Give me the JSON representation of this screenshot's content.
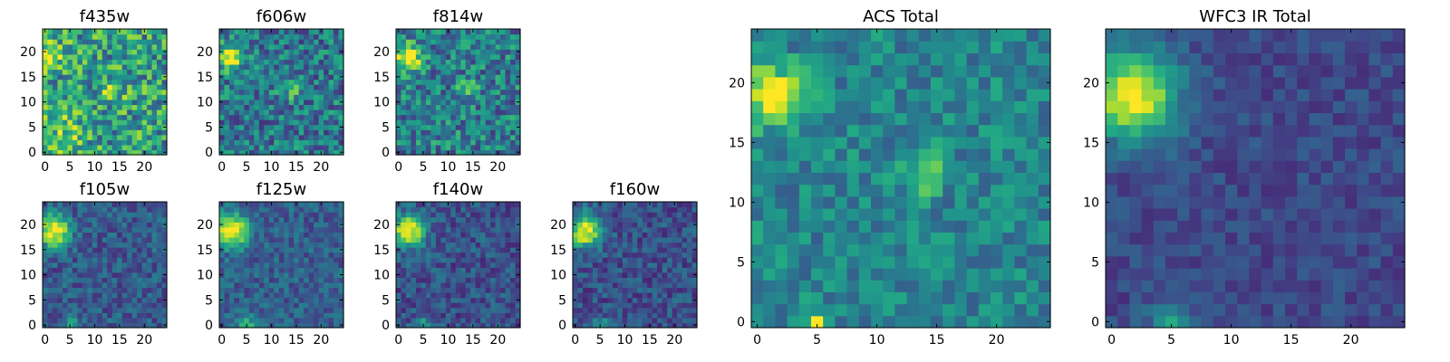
{
  "chart_data": [
    {
      "type": "heatmap",
      "title": "f435w",
      "xlim": [
        0,
        25
      ],
      "ylim": [
        0,
        25
      ],
      "xticks": [
        "0",
        "5",
        "10",
        "15",
        "20"
      ],
      "yticks": [
        "0",
        "5",
        "10",
        "15",
        "20"
      ],
      "colormap": "viridis",
      "noise": 0.62,
      "features": [
        {
          "x": 0.5,
          "y": 19,
          "amp": 0.55,
          "sigma": 2.0
        },
        {
          "x": 13.5,
          "y": 12.5,
          "amp": 0.35,
          "sigma": 1.5
        },
        {
          "x": 4,
          "y": 4,
          "amp": 0.2,
          "sigma": 3
        }
      ],
      "base": 0.55
    },
    {
      "type": "heatmap",
      "title": "f606w",
      "xlim": [
        0,
        25
      ],
      "ylim": [
        0,
        25
      ],
      "xticks": [
        "0",
        "5",
        "10",
        "15",
        "20"
      ],
      "yticks": [
        "0",
        "5",
        "10",
        "15",
        "20"
      ],
      "colormap": "viridis",
      "noise": 0.5,
      "features": [
        {
          "x": 1.5,
          "y": 19,
          "amp": 0.65,
          "sigma": 1.8
        },
        {
          "x": 14,
          "y": 12.5,
          "amp": 0.25,
          "sigma": 1.5
        }
      ],
      "base": 0.4
    },
    {
      "type": "heatmap",
      "title": "f814w",
      "xlim": [
        0,
        25
      ],
      "ylim": [
        0,
        25
      ],
      "xticks": [
        "0",
        "5",
        "10",
        "15",
        "20"
      ],
      "yticks": [
        "0",
        "5",
        "10",
        "15",
        "20"
      ],
      "colormap": "viridis",
      "noise": 0.5,
      "features": [
        {
          "x": 2,
          "y": 19,
          "amp": 0.7,
          "sigma": 1.8
        },
        {
          "x": 14,
          "y": 12.5,
          "amp": 0.2,
          "sigma": 1.5
        }
      ],
      "base": 0.42
    },
    {
      "type": "heatmap",
      "title": "f105w",
      "xlim": [
        0,
        25
      ],
      "ylim": [
        0,
        25
      ],
      "xticks": [
        "0",
        "5",
        "10",
        "15",
        "20"
      ],
      "yticks": [
        "0",
        "5",
        "10",
        "15",
        "20"
      ],
      "colormap": "viridis",
      "noise": 0.3,
      "features": [
        {
          "x": 1.8,
          "y": 18.8,
          "amp": 0.75,
          "sigma": 2.2
        },
        {
          "x": 5,
          "y": 0,
          "amp": 0.3,
          "sigma": 1.2
        }
      ],
      "base": 0.28
    },
    {
      "type": "heatmap",
      "title": "f125w",
      "xlim": [
        0,
        25
      ],
      "ylim": [
        0,
        25
      ],
      "xticks": [
        "0",
        "5",
        "10",
        "15",
        "20"
      ],
      "yticks": [
        "0",
        "5",
        "10",
        "15",
        "20"
      ],
      "colormap": "viridis",
      "noise": 0.28,
      "features": [
        {
          "x": 2,
          "y": 18.8,
          "amp": 0.75,
          "sigma": 2.3
        },
        {
          "x": 5,
          "y": 0,
          "amp": 0.45,
          "sigma": 1.2
        }
      ],
      "base": 0.3
    },
    {
      "type": "heatmap",
      "title": "f140w",
      "xlim": [
        0,
        25
      ],
      "ylim": [
        0,
        25
      ],
      "xticks": [
        "0",
        "5",
        "10",
        "15",
        "20"
      ],
      "yticks": [
        "0",
        "5",
        "10",
        "15",
        "20"
      ],
      "colormap": "viridis",
      "noise": 0.3,
      "features": [
        {
          "x": 2,
          "y": 18.8,
          "amp": 0.75,
          "sigma": 2.3
        },
        {
          "x": 5,
          "y": 0,
          "amp": 0.35,
          "sigma": 1.2
        }
      ],
      "base": 0.25
    },
    {
      "type": "heatmap",
      "title": "f160w",
      "xlim": [
        0,
        25
      ],
      "ylim": [
        0,
        25
      ],
      "xticks": [
        "0",
        "5",
        "10",
        "15",
        "20"
      ],
      "yticks": [
        "0",
        "5",
        "10",
        "15",
        "20"
      ],
      "colormap": "viridis",
      "noise": 0.3,
      "features": [
        {
          "x": 2,
          "y": 18.8,
          "amp": 0.75,
          "sigma": 2.3
        },
        {
          "x": 5,
          "y": 0,
          "amp": 0.35,
          "sigma": 1.2
        }
      ],
      "base": 0.25
    },
    {
      "type": "heatmap",
      "title": "ACS Total",
      "xlim": [
        0,
        25
      ],
      "ylim": [
        0,
        25
      ],
      "xticks": [
        "0",
        "5",
        "10",
        "15",
        "20"
      ],
      "yticks": [
        "0",
        "5",
        "10",
        "15",
        "20"
      ],
      "colormap": "viridis",
      "noise": 0.32,
      "features": [
        {
          "x": 1.2,
          "y": 19,
          "amp": 0.6,
          "sigma": 1.7
        },
        {
          "x": 13.8,
          "y": 12.5,
          "amp": 0.3,
          "sigma": 1.3
        },
        {
          "x": 5,
          "y": 0,
          "amp": 0.4,
          "sigma": 0.6
        }
      ],
      "base": 0.45
    },
    {
      "type": "heatmap",
      "title": "WFC3 IR Total",
      "xlim": [
        0,
        25
      ],
      "ylim": [
        0,
        25
      ],
      "xticks": [
        "0",
        "5",
        "10",
        "15",
        "20"
      ],
      "yticks": [
        "0",
        "5",
        "10",
        "15",
        "20"
      ],
      "colormap": "viridis",
      "noise": 0.18,
      "features": [
        {
          "x": 1.8,
          "y": 19,
          "amp": 0.78,
          "sigma": 2.6
        },
        {
          "x": 5,
          "y": 0,
          "amp": 0.35,
          "sigma": 1.3
        }
      ],
      "base": 0.22
    }
  ]
}
